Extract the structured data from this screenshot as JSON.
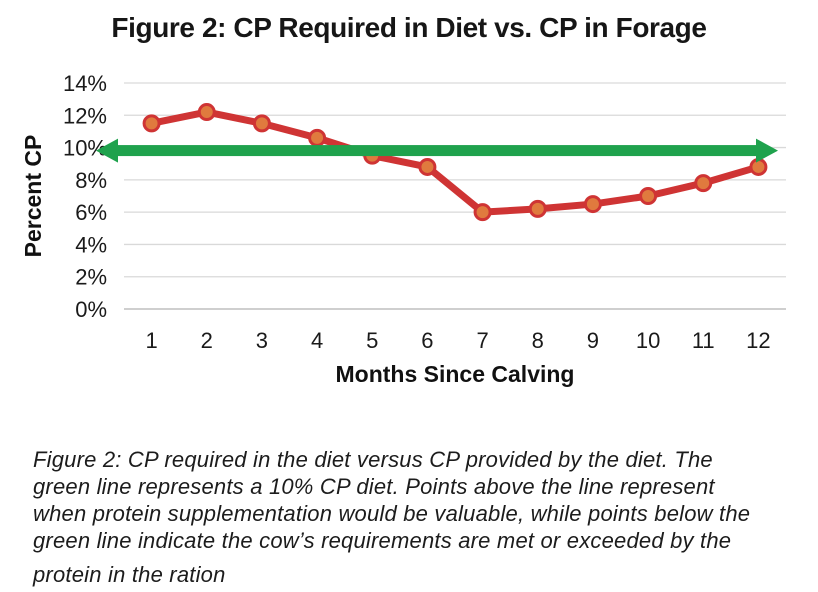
{
  "chart_data": {
    "type": "line",
    "title": "Figure 2: CP Required in Diet vs. CP in Forage",
    "xlabel": "Months Since Calving",
    "ylabel": "Percent CP",
    "categories": [
      1,
      2,
      3,
      4,
      5,
      6,
      7,
      8,
      9,
      10,
      11,
      12
    ],
    "values": [
      11.5,
      12.2,
      11.5,
      10.6,
      9.5,
      8.8,
      6.0,
      6.2,
      6.5,
      7.0,
      7.8,
      8.8
    ],
    "reference_line": {
      "value": 10,
      "style": "double-headed-arrow",
      "color": "#1fa24d"
    },
    "ylim": [
      0,
      14
    ],
    "ytick_step": 2,
    "ytick_suffix": "%",
    "grid": "horizontal",
    "legend": "none",
    "colors": {
      "line": "#cf3434",
      "marker_fill": "#e07a3e",
      "marker_stroke": "#cf3434",
      "gridline": "#d9d9d9",
      "axis_line": "#bfbfbf",
      "text": "#1a1a1a"
    }
  },
  "caption": {
    "lines": [
      "Figure 2: CP required in the diet versus CP provided by the diet. The",
      "green line represents a 10% CP diet. Points above the line represent",
      "when protein supplementation would be valuable, while points below the",
      "green line indicate the cow’s requirements are met or exceeded by the",
      "protein in the ration"
    ]
  }
}
